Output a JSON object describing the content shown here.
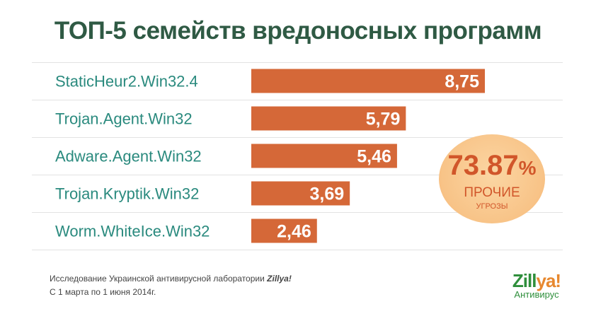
{
  "chart_data": {
    "type": "bar",
    "orientation": "horizontal",
    "title": "ТОП-5 семейств вредоносных программ",
    "categories": [
      "StaticHeur2.Win32.4",
      "Trojan.Agent.Win32",
      "Adware.Agent.Win32",
      "Trojan.Kryptik.Win32",
      "Worm.WhiteIce.Win32"
    ],
    "values": [
      8.75,
      5.79,
      5.46,
      3.69,
      2.46
    ],
    "value_labels": [
      "8,75",
      "5,79",
      "5,46",
      "3,69",
      "2,46"
    ],
    "xlim": [
      0,
      8.75
    ],
    "grid": false,
    "colors": {
      "bar": "#d56838",
      "label": "#2a8a7e",
      "divider": "#e2e2e2",
      "title": "#2f5a44"
    }
  },
  "badge": {
    "value": "73.87",
    "unit": "%",
    "label": "ПРОЧИЕ",
    "sublabel": "УГРОЗЫ",
    "color": "#f8c387"
  },
  "footnote": {
    "line1_prefix": "Исследование Украинской антивирусной лаборатории",
    "line1_brand": "Zillya!",
    "line2": "С 1 марта по 1 июня 2014г."
  },
  "brand": {
    "logo_main": "Zill",
    "logo_accent": "ya!",
    "subtitle": "Антивирус",
    "logo_icon": "zillya-logo"
  }
}
